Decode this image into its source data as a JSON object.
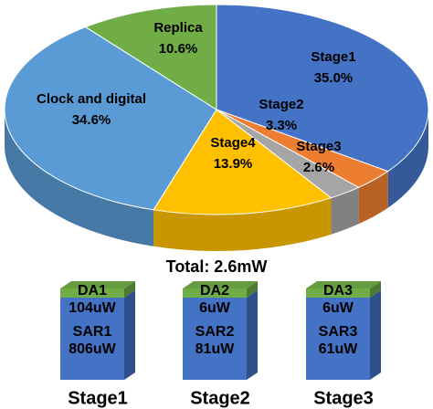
{
  "chart_data": [
    {
      "type": "pie",
      "categories": [
        "Stage1",
        "Stage2",
        "Stage3",
        "Stage4",
        "Clock and digital",
        "Replica"
      ],
      "values": [
        35.0,
        3.3,
        2.6,
        13.9,
        34.6,
        10.6
      ],
      "value_labels": [
        "35.0%",
        "3.3%",
        "2.6%",
        "13.9%",
        "34.6%",
        "10.6%"
      ],
      "colors": [
        "#4472c4",
        "#ed7d31",
        "#a5a5a5",
        "#ffc000",
        "#5b9bd5",
        "#70ad47"
      ],
      "annotation": "Total: 2.6mW"
    },
    {
      "type": "blocks",
      "categories": [
        "Stage1",
        "Stage2",
        "Stage3"
      ],
      "series": [
        {
          "labels": [
            "SAR1",
            "SAR2",
            "SAR3"
          ],
          "color": "#4472c4",
          "values": [
            806,
            81,
            61
          ],
          "value_labels": [
            "806uW",
            "81uW",
            "61uW"
          ]
        },
        {
          "labels": [
            "DA1",
            "DA2",
            "DA3"
          ],
          "color": "#70ad47",
          "values": [
            104,
            6,
            6
          ],
          "value_labels": [
            "104uW",
            "6uW",
            "6uW"
          ]
        }
      ]
    }
  ]
}
